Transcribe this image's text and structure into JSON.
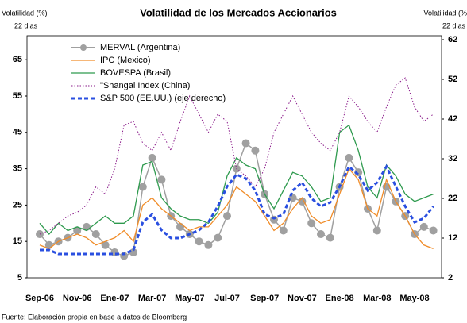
{
  "chart_data": {
    "type": "line",
    "title": "Volatilidad de los Mercados Accionarios",
    "y_label": "Volatilidad (%)",
    "y_sublabel": "22 dias",
    "y2_label": "Volatilidad (%",
    "y2_sublabel": "22 dias",
    "source": "Fuente: Elaboración propia en base a datos de Bloomberg",
    "categories": [
      "Sep-06",
      null,
      null,
      null,
      "Nov-06",
      null,
      null,
      null,
      "Ene-07",
      null,
      null,
      null,
      "Mar-07",
      null,
      null,
      null,
      "May-07",
      null,
      null,
      null,
      "Jul-07",
      null,
      null,
      null,
      "Sep-07",
      null,
      null,
      null,
      "Nov-07",
      null,
      null,
      null,
      "Ene-08",
      null,
      null,
      null,
      "Mar-08",
      null,
      null,
      null,
      "May-08",
      null,
      null
    ],
    "ylim": [
      5,
      70.5
    ],
    "yticks": [
      5,
      15,
      25,
      35,
      45,
      55,
      65
    ],
    "y2lim": [
      2,
      62
    ],
    "y2ticks": [
      2,
      12,
      22,
      32,
      42,
      52,
      62
    ],
    "legend": "upper left",
    "series": [
      {
        "name": "MERVAL (Argentina)",
        "color": "#a0a0a0",
        "line_style": "solid",
        "marker": "circle",
        "values": [
          17,
          14,
          15,
          16,
          18,
          19,
          17,
          14,
          12,
          11,
          12,
          30,
          38,
          32,
          22,
          19,
          17,
          15,
          14,
          16,
          22,
          35,
          42,
          40,
          28,
          21,
          18,
          27,
          26,
          20,
          17,
          16,
          30,
          38,
          34,
          24,
          18,
          30,
          26,
          22,
          17,
          19,
          18
        ]
      },
      {
        "name": "IPC (Mexico)",
        "color": "#f08c28",
        "line_style": "solid",
        "values": [
          14,
          13,
          15,
          16,
          17,
          16,
          14,
          15,
          16,
          18,
          15,
          25,
          27,
          24,
          22,
          20,
          18,
          19,
          19,
          22,
          25,
          30,
          28,
          26,
          22,
          18,
          20,
          24,
          27,
          22,
          20,
          21,
          28,
          35,
          32,
          24,
          22,
          32,
          26,
          22,
          17,
          14,
          13
        ]
      },
      {
        "name": "BOVESPA (Brasil)",
        "color": "#2e9a4e",
        "line_style": "solid",
        "values": [
          20,
          17,
          20,
          18,
          19,
          18,
          20,
          22,
          20,
          20,
          22,
          36,
          37,
          27,
          24,
          22,
          21,
          21,
          20,
          23,
          33,
          38,
          36,
          35,
          28,
          24,
          29,
          34,
          33,
          30,
          26,
          27,
          45,
          47,
          40,
          30,
          27,
          36,
          33,
          28,
          26,
          27,
          28
        ]
      },
      {
        "name": "\"Shangai Index (China)",
        "color": "#8a1a8a",
        "line_style": "dotted",
        "values": [
          17,
          18,
          20,
          22,
          23,
          25,
          30,
          28,
          35,
          47,
          48,
          42,
          40,
          45,
          40,
          48,
          55,
          50,
          45,
          50,
          48,
          35,
          33,
          30,
          35,
          45,
          50,
          55,
          50,
          45,
          42,
          40,
          45,
          55,
          52,
          48,
          45,
          52,
          58,
          60,
          52,
          48,
          50
        ]
      },
      {
        "name": "S&P 500 (EE.UU.) (eje derecho)",
        "color": "#2a4fe0",
        "line_style": "dashed",
        "axis": "y2",
        "values": [
          9,
          9,
          8,
          8,
          8,
          8,
          8,
          8,
          8,
          8,
          9,
          16,
          18,
          14,
          12,
          12,
          13,
          14,
          16,
          20,
          25,
          28,
          27,
          24,
          18,
          17,
          18,
          24,
          26,
          22,
          20,
          21,
          25,
          30,
          28,
          24,
          26,
          30,
          25,
          20,
          16,
          17,
          20
        ]
      }
    ]
  }
}
